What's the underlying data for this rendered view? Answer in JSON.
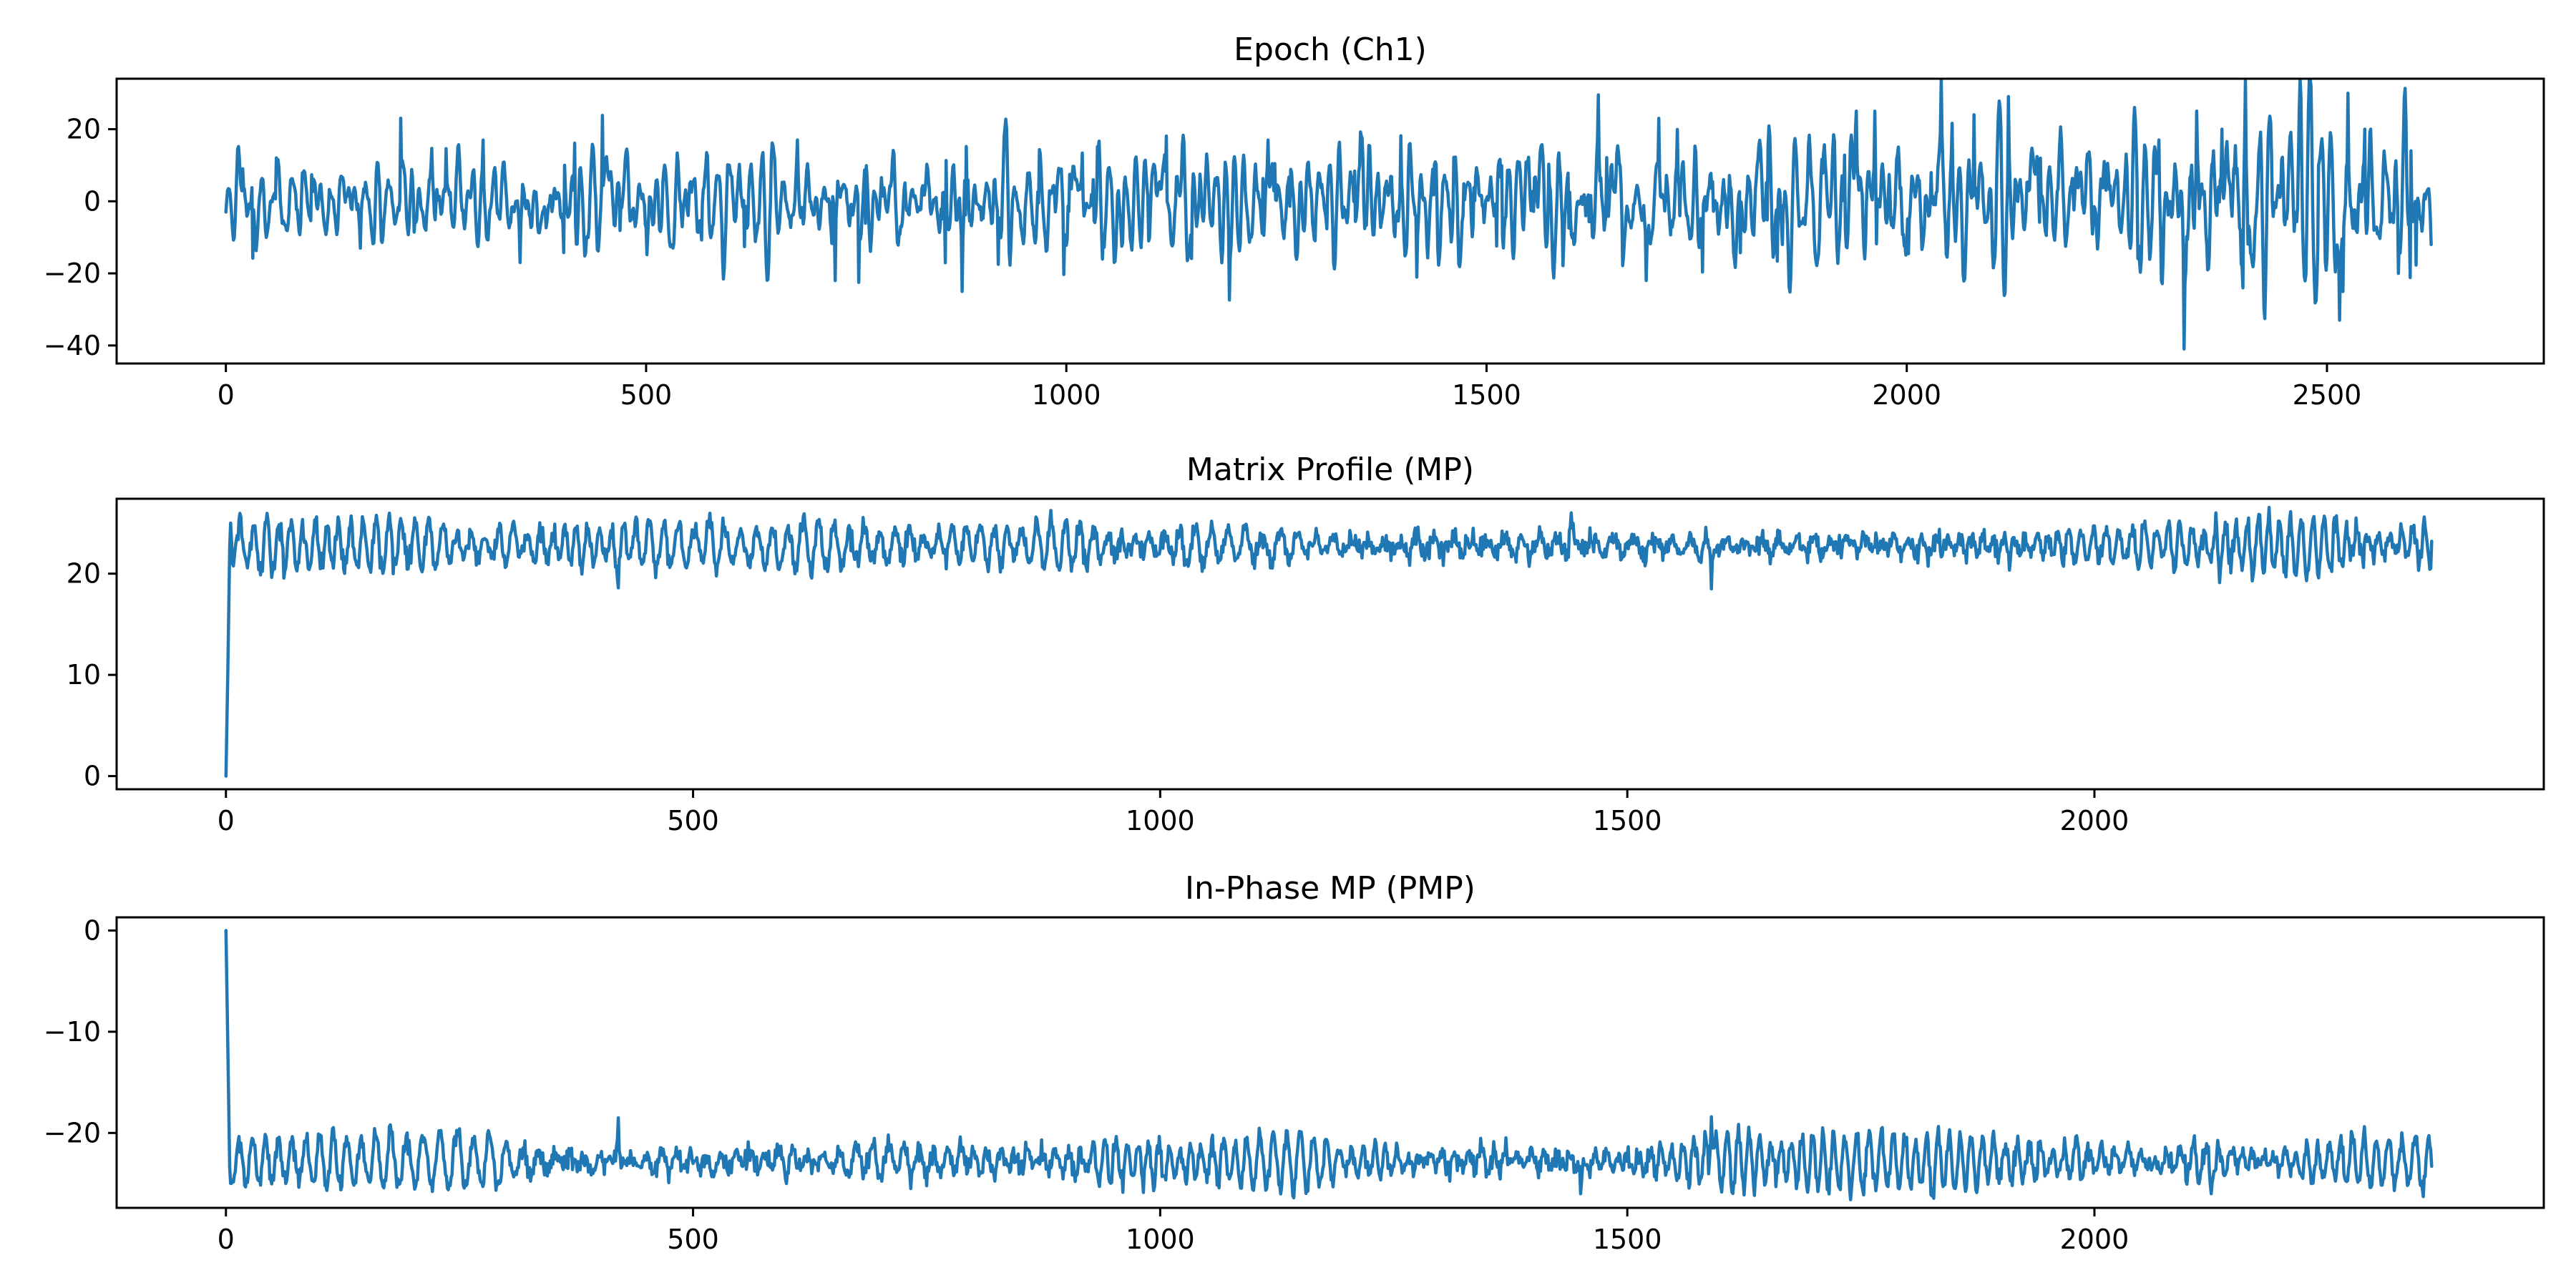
{
  "colors": {
    "series": "#1f77b4",
    "axes": "#000000",
    "background": "#ffffff"
  },
  "chart_data": [
    {
      "type": "line",
      "title": "Epoch (Ch1)",
      "xlabel": "",
      "ylabel": "",
      "xlim": [
        -130,
        2758
      ],
      "ylim": [
        -45,
        34
      ],
      "xticks": [
        0,
        500,
        1000,
        1500,
        2000,
        2500
      ],
      "yticks": [
        -40,
        -20,
        0,
        20
      ],
      "grid": false,
      "n_points": 2625,
      "x_start": 0,
      "x_end": 2624,
      "shape": {
        "seed": 11,
        "noise": 7,
        "spike_prob": 0.03,
        "spike_amp": 12,
        "envelope": [
          [
            0,
            0.8
          ],
          [
            600,
            1.0
          ],
          [
            1200,
            1.0
          ],
          [
            1600,
            1.15
          ],
          [
            1900,
            1.3
          ],
          [
            2300,
            1.45
          ],
          [
            2625,
            1.5
          ]
        ]
      },
      "anchors": [
        [
          0,
          -3
        ],
        [
          20,
          9
        ],
        [
          160,
          -13
        ],
        [
          350,
          -17
        ],
        [
          680,
          17
        ],
        [
          725,
          -22
        ],
        [
          1690,
          -22
        ],
        [
          1705,
          23
        ],
        [
          1940,
          25
        ],
        [
          2080,
          24
        ],
        [
          2300,
          17
        ],
        [
          2330,
          -41
        ],
        [
          2345,
          25
        ],
        [
          2375,
          20
        ],
        [
          2400,
          -24
        ],
        [
          2490,
          10
        ],
        [
          2515,
          -33
        ],
        [
          2525,
          30
        ],
        [
          2545,
          20
        ],
        [
          2585,
          -20
        ],
        [
          2600,
          14
        ],
        [
          2624,
          -12
        ]
      ]
    },
    {
      "type": "line",
      "title": "Matrix Profile (MP)",
      "xlabel": "",
      "ylabel": "",
      "xlim": [
        -117,
        2481
      ],
      "ylim": [
        -1.3,
        27.4
      ],
      "xticks": [
        0,
        500,
        1000,
        1500,
        2000
      ],
      "yticks": [
        0,
        10,
        20
      ],
      "grid": false,
      "n_points": 2362,
      "x_start": 0,
      "x_end": 2361,
      "shape": {
        "seed": 23,
        "baseline": 22.8,
        "osc_amp": 1.9,
        "osc_period": 16,
        "noise": 0.5,
        "ramp_len": 4,
        "start_value": 0
      },
      "anchors": [
        [
          0,
          0
        ],
        [
          5,
          25
        ],
        [
          420,
          18.6
        ],
        [
          1440,
          26
        ],
        [
          1590,
          18.5
        ],
        [
          2130,
          26
        ],
        [
          2280,
          25.5
        ],
        [
          2361,
          23.2
        ]
      ]
    },
    {
      "type": "line",
      "title": "In-Phase MP (PMP)",
      "xlabel": "",
      "ylabel": "",
      "xlim": [
        -117,
        2481
      ],
      "ylim": [
        -27.4,
        1.3
      ],
      "xticks": [
        0,
        500,
        1000,
        1500,
        2000
      ],
      "yticks": [
        -20,
        -10,
        0
      ],
      "grid": false,
      "n_points": 2362,
      "x_start": 0,
      "x_end": 2361,
      "shape": {
        "seed": 37,
        "baseline": -22.8,
        "osc_amp": 1.9,
        "osc_period": 16,
        "noise": 0.5,
        "ramp_len": 4,
        "start_value": 0
      },
      "anchors": [
        [
          0,
          0
        ],
        [
          5,
          -25
        ],
        [
          420,
          -18.5
        ],
        [
          1450,
          -26
        ],
        [
          1590,
          -18.4
        ],
        [
          2125,
          -26
        ],
        [
          2361,
          -23.3
        ]
      ]
    }
  ]
}
